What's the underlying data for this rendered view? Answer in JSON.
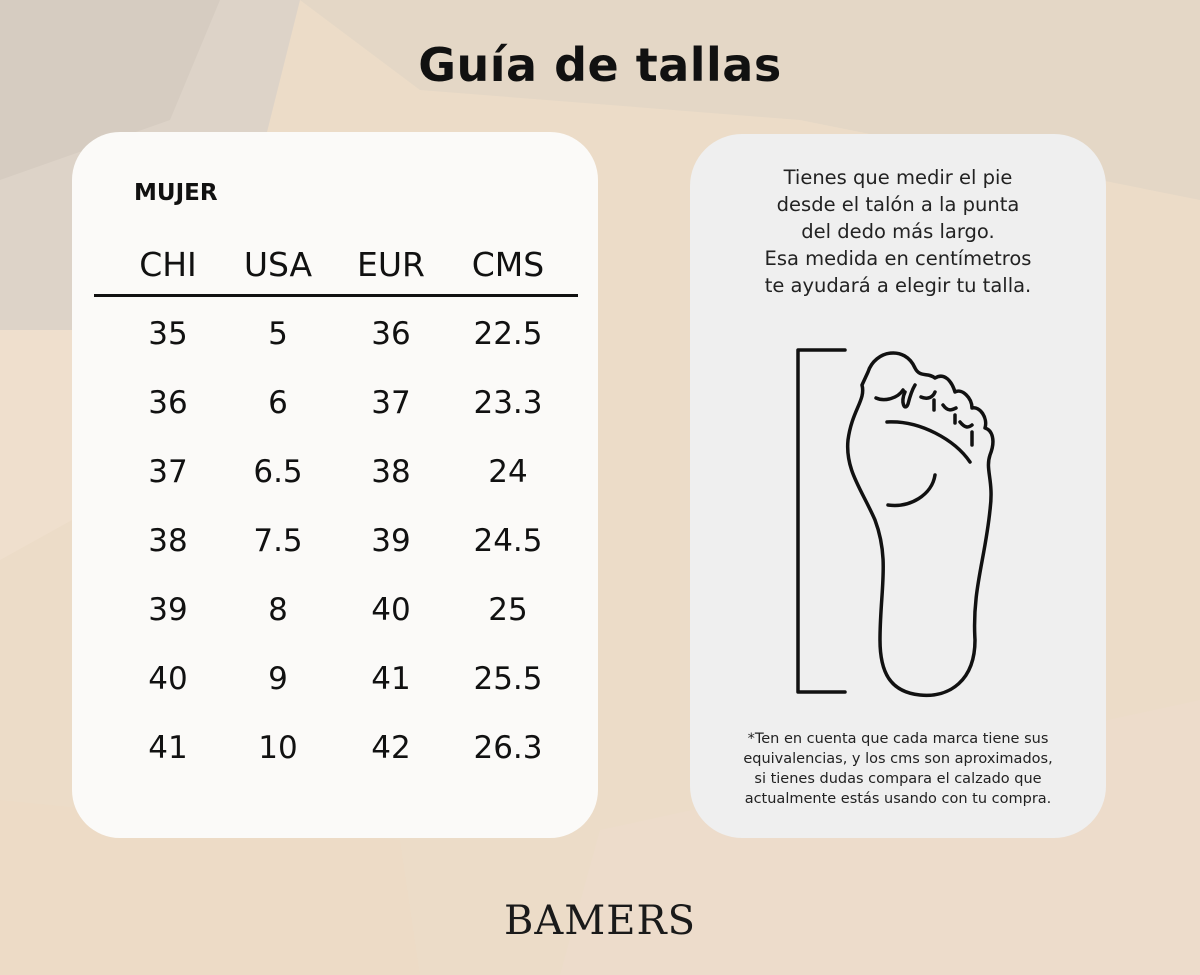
{
  "title": "Guía de tallas",
  "size_table": {
    "category": "MUJER",
    "headers": [
      "CHI",
      "USA",
      "EUR",
      "CMS"
    ],
    "rows": [
      [
        "35",
        "5",
        "36",
        "22.5"
      ],
      [
        "36",
        "6",
        "37",
        "23.3"
      ],
      [
        "37",
        "6.5",
        "38",
        "24"
      ],
      [
        "38",
        "7.5",
        "39",
        "24.5"
      ],
      [
        "39",
        "8",
        "40",
        "25"
      ],
      [
        "40",
        "9",
        "41",
        "25.5"
      ],
      [
        "41",
        "10",
        "42",
        "26.3"
      ]
    ]
  },
  "instructions": {
    "lines": [
      "Tienes que medir el pie",
      "desde el talón a la punta",
      "del dedo más largo.",
      "Esa medida en centímetros",
      "te ayudará a elegir tu talla."
    ],
    "illustration": "foot-measurement-icon",
    "note_lines": [
      "*Ten en cuenta que cada marca tiene sus",
      "equivalencias, y los cms son aproximados,",
      "si tienes dudas compara el calzado que",
      "actualmente estás usando con tu compra."
    ]
  },
  "brand": "BAMERS",
  "colors": {
    "background": "#ecdcc8",
    "card_left": "#fbfaf8",
    "card_right": "#efefef",
    "text": "#111111"
  }
}
